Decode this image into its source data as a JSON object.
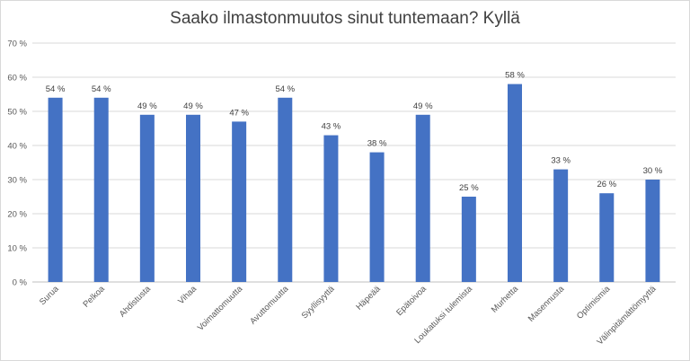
{
  "chart_data": {
    "type": "bar",
    "title": "Saako ilmastonmuutos sinut tuntemaan? Kyllä",
    "xlabel": "",
    "ylabel": "",
    "ylim": [
      0,
      70
    ],
    "yticks": [
      0,
      10,
      20,
      30,
      40,
      50,
      60,
      70
    ],
    "ytick_labels": [
      "0 %",
      "10 %",
      "20 %",
      "30 %",
      "40 %",
      "50 %",
      "60 %",
      "70 %"
    ],
    "grid": true,
    "legend": "none",
    "bar_color": "#4472c4",
    "categories": [
      "Surua",
      "Pelkoa",
      "Ahdistusta",
      "Vihaa",
      "Voimattomuutta",
      "Avuttomuutta",
      "Syyllisyyttä",
      "Häpeää",
      "Epätoivoa",
      "Loukatuksi tulemista",
      "Murhetta",
      "Masennusta",
      "Optimismia",
      "Välinpitämättömyyttä"
    ],
    "values": [
      54,
      54,
      49,
      49,
      47,
      54,
      43,
      38,
      49,
      25,
      58,
      33,
      26,
      30
    ],
    "value_labels": [
      "54 %",
      "54 %",
      "49 %",
      "49 %",
      "47 %",
      "54 %",
      "43 %",
      "38 %",
      "49 %",
      "25 %",
      "58 %",
      "33 %",
      "26 %",
      "30 %"
    ]
  }
}
